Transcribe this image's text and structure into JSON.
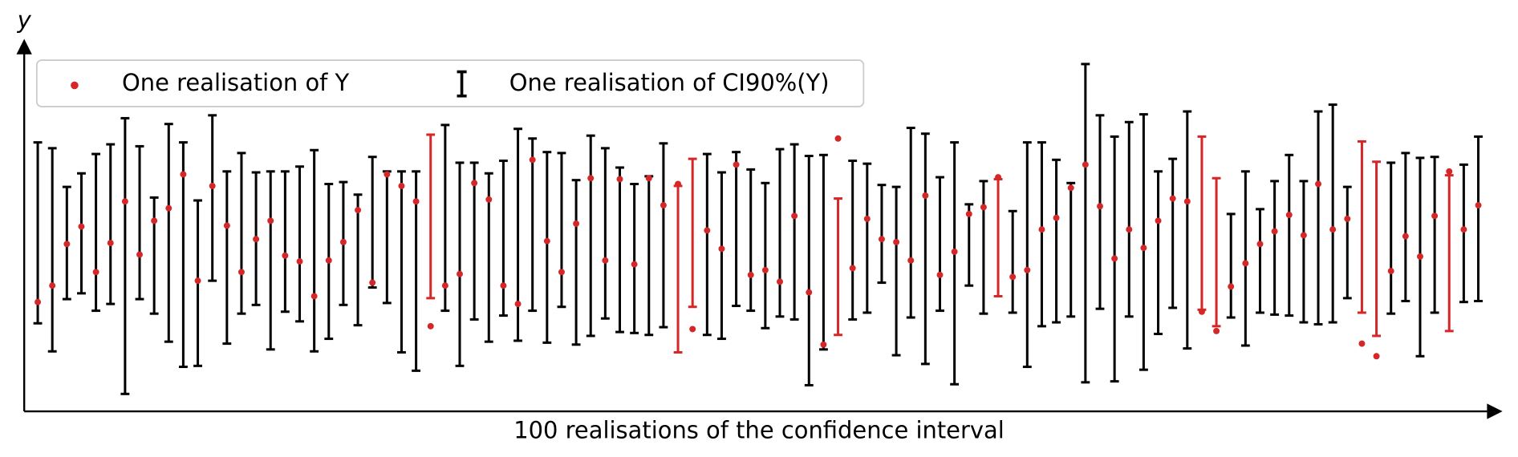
{
  "chart_data": {
    "type": "interval",
    "x_label": "100 realisations of the confidence interval",
    "y_label": "y",
    "ylim": [
      0,
      385
    ],
    "point_name": "One realisation of Y",
    "interval_name": "One realisation of CI90%(Y)",
    "point_color": "#d62728",
    "interval_color": "#000000",
    "miss_color": "#d62728",
    "points": [
      113,
      130,
      173,
      191,
      144,
      174,
      217,
      162,
      197,
      210,
      245,
      135,
      233,
      192,
      144,
      178,
      197,
      161,
      155,
      119,
      156,
      175,
      208,
      133,
      245,
      233,
      217,
      88,
      130,
      142,
      236,
      219,
      130,
      111,
      260,
      176,
      144,
      194,
      241,
      156,
      240,
      152,
      241,
      213,
      235,
      85,
      187,
      168,
      255,
      141,
      146,
      134,
      202,
      123,
      69,
      282,
      148,
      199,
      178,
      175,
      156,
      223,
      141,
      165,
      204,
      211,
      242,
      139,
      146,
      188,
      200,
      231,
      255,
      212,
      158,
      188,
      169,
      197,
      220,
      217,
      103,
      83,
      129,
      153,
      173,
      186,
      203,
      182,
      235,
      188,
      199,
      70,
      57,
      145,
      181,
      160,
      202,
      248,
      188,
      213
    ],
    "lower": [
      91,
      62,
      116,
      122,
      104,
      111,
      18,
      116,
      101,
      72,
      46,
      47,
      135,
      70,
      101,
      110,
      64,
      103,
      93,
      62,
      75,
      110,
      89,
      128,
      112,
      61,
      42,
      117,
      104,
      47,
      95,
      72,
      99,
      73,
      104,
      71,
      108,
      69,
      78,
      96,
      82,
      81,
      79,
      87,
      61,
      108,
      79,
      75,
      109,
      104,
      86,
      98,
      95,
      27,
      64,
      79,
      95,
      102,
      133,
      58,
      97,
      49,
      104,
      28,
      130,
      101,
      119,
      102,
      46,
      88,
      92,
      98,
      30,
      106,
      31,
      98,
      43,
      80,
      107,
      65,
      105,
      88,
      97,
      68,
      102,
      100,
      99,
      92,
      90,
      92,
      117,
      102,
      78,
      101,
      114,
      57,
      102,
      83,
      113,
      114
    ],
    "upper": [
      278,
      272,
      232,
      246,
      266,
      276,
      303,
      274,
      221,
      297,
      278,
      218,
      306,
      248,
      267,
      247,
      248,
      248,
      253,
      270,
      235,
      237,
      224,
      263,
      248,
      248,
      248,
      286,
      296,
      257,
      257,
      246,
      259,
      292,
      282,
      268,
      267,
      239,
      285,
      272,
      252,
      235,
      243,
      277,
      233,
      261,
      266,
      247,
      268,
      250,
      236,
      271,
      276,
      264,
      265,
      220,
      259,
      256,
      234,
      232,
      293,
      287,
      242,
      278,
      214,
      238,
      240,
      207,
      278,
      278,
      260,
      236,
      359,
      306,
      284,
      299,
      307,
      248,
      261,
      310,
      284,
      241,
      204,
      248,
      209,
      238,
      265,
      238,
      310,
      317,
      232,
      279,
      258,
      257,
      267,
      262,
      263,
      244,
      255,
      284
    ]
  }
}
